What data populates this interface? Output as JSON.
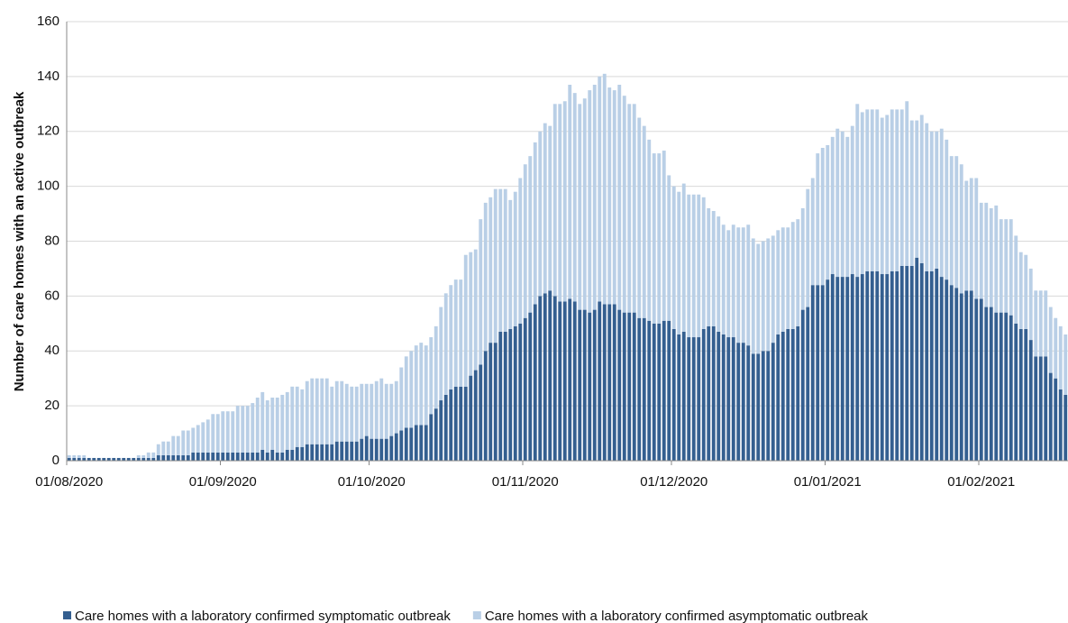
{
  "chart_data": {
    "type": "stacked-bar",
    "y_label": "Number of care homes with an active outbreak",
    "categories": [
      "01/08/2020",
      null,
      null,
      null,
      null,
      null,
      null,
      null,
      null,
      null,
      null,
      null,
      null,
      null,
      null,
      null,
      null,
      null,
      null,
      null,
      null,
      null,
      null,
      null,
      null,
      null,
      null,
      null,
      null,
      null,
      null,
      "01/09/2020",
      null,
      null,
      null,
      null,
      null,
      null,
      null,
      null,
      null,
      null,
      null,
      null,
      null,
      null,
      null,
      null,
      null,
      null,
      null,
      null,
      null,
      null,
      null,
      null,
      null,
      null,
      null,
      null,
      null,
      "01/10/2020",
      null,
      null,
      null,
      null,
      null,
      null,
      null,
      null,
      null,
      null,
      null,
      null,
      null,
      null,
      null,
      null,
      null,
      null,
      null,
      null,
      null,
      null,
      null,
      null,
      null,
      null,
      null,
      null,
      null,
      null,
      "01/11/2020",
      null,
      null,
      null,
      null,
      null,
      null,
      null,
      null,
      null,
      null,
      null,
      null,
      null,
      null,
      null,
      null,
      null,
      null,
      null,
      null,
      null,
      null,
      null,
      null,
      null,
      null,
      null,
      null,
      null,
      "01/12/2020",
      null,
      null,
      null,
      null,
      null,
      null,
      null,
      null,
      null,
      null,
      null,
      null,
      null,
      null,
      null,
      null,
      null,
      null,
      null,
      null,
      null,
      null,
      null,
      null,
      null,
      null,
      null,
      null,
      null,
      null,
      "01/01/2021",
      null,
      null,
      null,
      null,
      null,
      null,
      null,
      null,
      null,
      null,
      null,
      null,
      null,
      null,
      null,
      null,
      null,
      null,
      null,
      null,
      null,
      null,
      null,
      null,
      null,
      null,
      null,
      null,
      null,
      null,
      "01/02/2021",
      null,
      null,
      null,
      null,
      null,
      null,
      null,
      null,
      null,
      null,
      null,
      null,
      null,
      null,
      null,
      null,
      null
    ],
    "series": [
      {
        "name": "Care homes with a laboratory confirmed symptomatic outbreak",
        "color": "#345f90",
        "values": [
          1,
          1,
          1,
          1,
          1,
          1,
          1,
          1,
          1,
          1,
          1,
          1,
          1,
          1,
          1,
          1,
          1,
          1,
          2,
          2,
          2,
          2,
          2,
          2,
          2,
          3,
          3,
          3,
          3,
          3,
          3,
          3,
          3,
          3,
          3,
          3,
          3,
          3,
          3,
          4,
          3,
          4,
          3,
          3,
          4,
          4,
          5,
          5,
          6,
          6,
          6,
          6,
          6,
          6,
          7,
          7,
          7,
          7,
          7,
          8,
          9,
          8,
          8,
          8,
          8,
          9,
          10,
          11,
          12,
          12,
          13,
          13,
          13,
          17,
          19,
          22,
          24,
          26,
          27,
          27,
          27,
          31,
          33,
          35,
          40,
          43,
          43,
          47,
          47,
          48,
          49,
          50,
          52,
          54,
          57,
          60,
          61,
          62,
          60,
          58,
          58,
          59,
          58,
          55,
          55,
          54,
          55,
          58,
          57,
          57,
          57,
          55,
          54,
          54,
          54,
          52,
          52,
          51,
          50,
          50,
          51,
          51,
          48,
          46,
          47,
          45,
          45,
          45,
          48,
          49,
          49,
          47,
          46,
          45,
          45,
          43,
          43,
          42,
          39,
          39,
          40,
          40,
          43,
          46,
          47,
          48,
          48,
          49,
          55,
          56,
          64,
          64,
          64,
          66,
          68,
          67,
          67,
          67,
          68,
          67,
          68,
          69,
          69,
          69,
          68,
          68,
          69,
          69,
          71,
          71,
          71,
          74,
          72,
          69,
          69,
          70,
          67,
          66,
          64,
          63,
          61,
          62,
          62,
          59,
          59,
          56,
          56,
          54,
          54,
          54,
          53,
          50,
          48,
          48,
          44,
          38,
          38,
          38,
          32,
          30,
          26,
          24
        ]
      },
      {
        "name": "Care homes with a laboratory confirmed asymptomatic outbreak",
        "color": "#b9cfe6",
        "values": [
          1,
          1,
          1,
          1,
          0,
          0,
          0,
          0,
          0,
          0,
          0,
          0,
          0,
          0,
          1,
          1,
          2,
          2,
          4,
          5,
          5,
          7,
          7,
          9,
          9,
          9,
          10,
          11,
          12,
          14,
          14,
          15,
          15,
          15,
          17,
          17,
          17,
          18,
          20,
          21,
          19,
          19,
          20,
          21,
          21,
          23,
          22,
          21,
          23,
          24,
          24,
          24,
          24,
          21,
          22,
          22,
          21,
          20,
          20,
          20,
          19,
          20,
          21,
          22,
          20,
          19,
          19,
          23,
          26,
          28,
          29,
          30,
          29,
          28,
          30,
          34,
          37,
          38,
          39,
          39,
          48,
          45,
          44,
          53,
          54,
          53,
          56,
          52,
          52,
          47,
          49,
          53,
          56,
          57,
          59,
          60,
          62,
          60,
          70,
          72,
          73,
          78,
          76,
          75,
          77,
          81,
          82,
          82,
          84,
          79,
          78,
          82,
          79,
          76,
          76,
          73,
          70,
          66,
          62,
          62,
          62,
          53,
          52,
          52,
          54,
          52,
          52,
          52,
          48,
          43,
          42,
          42,
          40,
          39,
          41,
          42,
          42,
          44,
          42,
          40,
          40,
          41,
          39,
          38,
          38,
          37,
          39,
          39,
          37,
          43,
          39,
          48,
          50,
          49,
          50,
          54,
          53,
          51,
          54,
          63,
          59,
          59,
          59,
          59,
          57,
          58,
          59,
          59,
          57,
          60,
          53,
          50,
          54,
          54,
          51,
          50,
          54,
          51,
          47,
          48,
          47,
          40,
          41,
          44,
          35,
          38,
          36,
          39,
          34,
          34,
          35,
          32,
          28,
          27,
          26,
          24,
          24,
          24,
          24,
          22,
          23,
          22
        ]
      }
    ],
    "ylim": [
      0,
      160
    ],
    "yticks": [
      0,
      20,
      40,
      60,
      80,
      100,
      120,
      140,
      160
    ],
    "grid": true
  }
}
